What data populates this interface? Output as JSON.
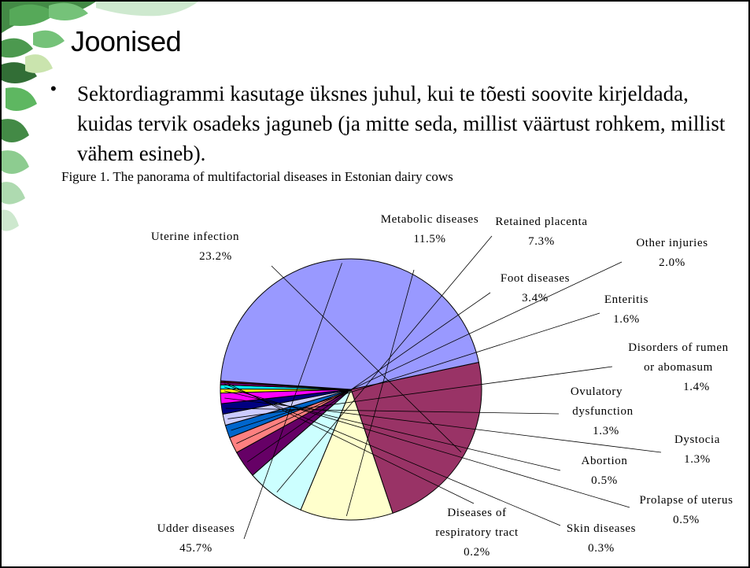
{
  "slide": {
    "title": "Joonised",
    "bullet": "Sektordiagrammi kasutage üksnes juhul, kui te tõesti soovite kirjeldada, kuidas tervik osadeks jaguneb (ja mitte seda, millist väärtust rohkem, millist vähem esineb).",
    "figure_caption": "Figure 1. The panorama of multifactorial diseases in Estonian dairy cows"
  },
  "chart_data": {
    "type": "pie",
    "title": "Figure 1. The panorama of multifactorial diseases in Estonian dairy cows",
    "slices": [
      {
        "label": "Uterine infection",
        "value": 23.2,
        "value_label": "23.2%",
        "color": "#993366"
      },
      {
        "label": "Metabolic diseases",
        "value": 11.5,
        "value_label": "11.5%",
        "color": "#FFFFCC"
      },
      {
        "label": "Retained placenta",
        "value": 7.3,
        "value_label": "7.3%",
        "color": "#CCFFFF"
      },
      {
        "label": "Foot diseases",
        "value": 3.4,
        "value_label": "3.4%",
        "color": "#660066"
      },
      {
        "label": "Other injuries",
        "value": 2.0,
        "value_label": "2.0%",
        "color": "#FF8080"
      },
      {
        "label": "Enteritis",
        "value": 1.6,
        "value_label": "1.6%",
        "color": "#0066CC"
      },
      {
        "label": "Disorders of rumen or abomasum",
        "value": 1.4,
        "value_label": "1.4%",
        "color": "#CCCCFF"
      },
      {
        "label": "Ovulatory dysfunction",
        "value": 1.3,
        "value_label": "1.3%",
        "color": "#000080"
      },
      {
        "label": "Dystocia",
        "value": 1.3,
        "value_label": "1.3%",
        "color": "#FF00FF"
      },
      {
        "label": "Abortion",
        "value": 0.5,
        "value_label": "0.5%",
        "color": "#FFFF00"
      },
      {
        "label": "Prolapse of uterus",
        "value": 0.5,
        "value_label": "0.5%",
        "color": "#00FFFF"
      },
      {
        "label": "Skin diseases",
        "value": 0.3,
        "value_label": "0.3%",
        "color": "#800080"
      },
      {
        "label": "Diseases of respiratory tract",
        "value": 0.2,
        "value_label": "0.2%",
        "color": "#800000"
      },
      {
        "label": "Udder diseases",
        "value": 45.7,
        "value_label": "45.7%",
        "color": "#9999FF"
      }
    ]
  }
}
